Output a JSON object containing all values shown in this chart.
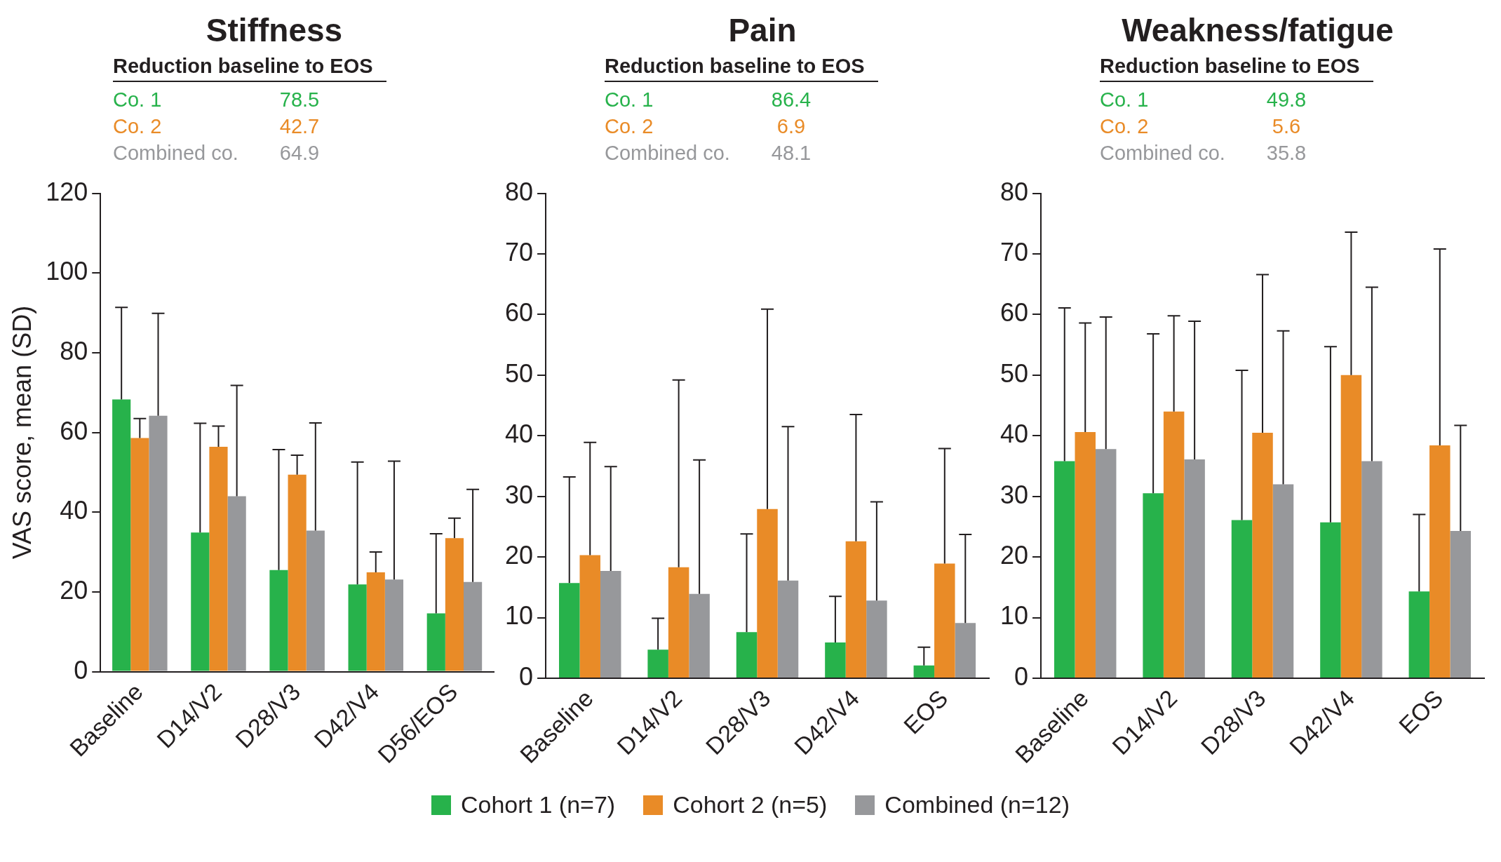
{
  "chart_data": [
    {
      "type": "bar",
      "title": "Stiffness",
      "ylabel": "VAS score, mean (SD)",
      "annotations": [
        "Reduction baseline to EOS",
        "Co. 1",
        "78.5",
        "Co. 2",
        "42.7",
        "Combined co.",
        "64.9"
      ],
      "categories": [
        "Baseline",
        "D14/V2",
        "D28/V3",
        "D42/V4",
        "D56/EOS"
      ],
      "ylim": [
        0,
        120
      ],
      "yticks": [
        0,
        20,
        40,
        60,
        80,
        100,
        120
      ],
      "series": [
        {
          "color": "#27b24b",
          "values": [
            68.3,
            34.9,
            25.5,
            21.9,
            14.6
          ],
          "errors": [
            [
              68.3,
              91.4
            ],
            [
              34.9,
              62.3
            ],
            [
              25.5,
              55.7
            ],
            [
              21.9,
              52.6
            ],
            [
              14.6,
              34.6
            ]
          ]
        },
        {
          "color": "#e98b27",
          "values": [
            58.6,
            56.4,
            49.4,
            24.9,
            33.5
          ],
          "errors": [
            [
              58.6,
              63.5
            ],
            [
              56.4,
              61.6
            ],
            [
              49.4,
              54.3
            ],
            [
              24.9,
              30.0
            ],
            [
              33.5,
              38.5
            ]
          ]
        },
        {
          "color": "#97989b",
          "values": [
            64.2,
            44.0,
            35.4,
            23.1,
            22.5
          ],
          "errors": [
            [
              64.2,
              89.9
            ],
            [
              44.0,
              71.8
            ],
            [
              35.4,
              62.4
            ],
            [
              23.1,
              52.8
            ],
            [
              22.5,
              45.7
            ]
          ]
        }
      ]
    },
    {
      "type": "bar",
      "title": "Pain",
      "legend": "bottom",
      "annotations": [
        "Reduction baseline to EOS",
        "Co. 1",
        "86.4",
        "Co. 2",
        "6.9",
        "Combined co.",
        "48.1"
      ],
      "categories": [
        "Baseline",
        "D14/V2",
        "D28/V3",
        "D42/V4",
        "EOS"
      ],
      "ylim": [
        0,
        80
      ],
      "yticks": [
        0,
        10,
        20,
        30,
        40,
        50,
        60,
        70,
        80
      ],
      "series": [
        {
          "name": "Cohort 1 (n=7)",
          "color": "#27b24b",
          "values": [
            15.7,
            4.7,
            7.6,
            5.9,
            2.1
          ],
          "errors": [
            [
              15.7,
              33.2
            ],
            [
              4.7,
              9.9
            ],
            [
              7.6,
              23.8
            ],
            [
              5.9,
              13.5
            ],
            [
              2.1,
              5.1
            ]
          ]
        },
        {
          "name": "Cohort 2 (n=5)",
          "color": "#e98b27",
          "values": [
            20.3,
            18.3,
            27.9,
            22.6,
            18.9
          ],
          "errors": [
            [
              20.3,
              38.9
            ],
            [
              18.3,
              49.2
            ],
            [
              27.9,
              60.9
            ],
            [
              22.6,
              43.5
            ],
            [
              18.9,
              37.9
            ]
          ]
        },
        {
          "name": "Combined (n=12)",
          "color": "#97989b",
          "values": [
            17.7,
            13.9,
            16.1,
            12.8,
            9.1
          ],
          "errors": [
            [
              17.7,
              34.9
            ],
            [
              13.9,
              36.0
            ],
            [
              16.1,
              41.5
            ],
            [
              12.8,
              29.1
            ],
            [
              9.1,
              23.7
            ]
          ]
        }
      ]
    },
    {
      "type": "bar",
      "title": "Weakness/fatigue",
      "annotations": [
        "Reduction baseline to EOS",
        "Co. 1",
        "49.8",
        "Co. 2",
        "5.6",
        "Combined co.",
        "35.8"
      ],
      "categories": [
        "Baseline",
        "D14/V2",
        "D28/V3",
        "D42/V4",
        "EOS"
      ],
      "ylim": [
        0,
        80
      ],
      "yticks": [
        0,
        10,
        20,
        30,
        40,
        50,
        60,
        70,
        80
      ],
      "series": [
        {
          "color": "#27b24b",
          "values": [
            35.8,
            30.5,
            26.1,
            25.7,
            14.3
          ],
          "errors": [
            [
              35.8,
              61.1
            ],
            [
              30.5,
              56.8
            ],
            [
              26.1,
              50.8
            ],
            [
              25.7,
              54.7
            ],
            [
              14.3,
              27.0
            ]
          ]
        },
        {
          "color": "#e98b27",
          "values": [
            40.6,
            44.0,
            40.5,
            50.0,
            38.4
          ],
          "errors": [
            [
              40.6,
              58.6
            ],
            [
              44.0,
              59.8
            ],
            [
              40.5,
              66.6
            ],
            [
              50.0,
              73.6
            ],
            [
              38.4,
              70.8
            ]
          ]
        },
        {
          "color": "#97989b",
          "values": [
            37.8,
            36.1,
            32.0,
            35.8,
            24.3
          ],
          "errors": [
            [
              37.8,
              59.6
            ],
            [
              36.1,
              58.9
            ],
            [
              32.0,
              57.3
            ],
            [
              35.8,
              64.5
            ],
            [
              24.3,
              41.7
            ]
          ]
        }
      ]
    }
  ]
}
